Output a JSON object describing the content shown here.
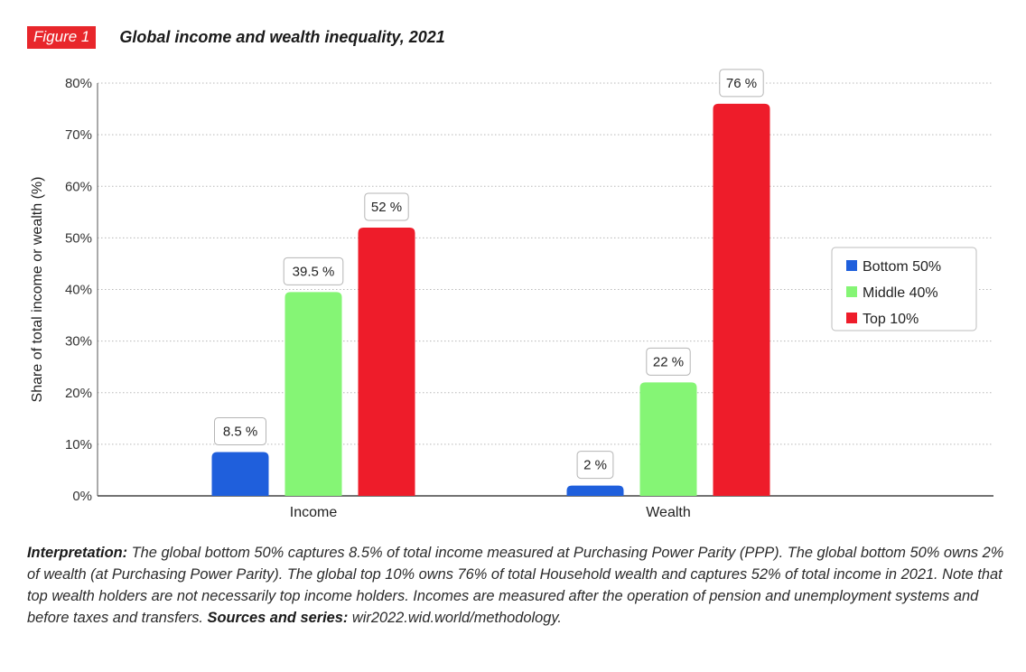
{
  "header": {
    "badge": "Figure 1",
    "title": "Global income and wealth inequality, 2021"
  },
  "chart_data": {
    "type": "bar",
    "title": "Global income and wealth inequality, 2021",
    "xlabel": "",
    "ylabel": "Share of total income or wealth (%)",
    "categories": [
      "Income",
      "Wealth"
    ],
    "yticks": [
      "0%",
      "10%",
      "20%",
      "30%",
      "40%",
      "50%",
      "60%",
      "70%",
      "80%"
    ],
    "ylim": [
      0,
      80
    ],
    "grid": true,
    "legend_position": "right",
    "series": [
      {
        "name": "Bottom 50%",
        "color": "#1f5fdc",
        "values": [
          8.5,
          2
        ],
        "labels": [
          "8.5 %",
          "2 %"
        ]
      },
      {
        "name": "Middle 40%",
        "color": "#85f575",
        "values": [
          39.5,
          22
        ],
        "labels": [
          "39.5 %",
          "22 %"
        ]
      },
      {
        "name": "Top 10%",
        "color": "#ee1c2a",
        "values": [
          52,
          76
        ],
        "labels": [
          "52 %",
          "76 %"
        ]
      }
    ]
  },
  "note": {
    "lead": "Interpretation:",
    "body": " The global bottom 50% captures 8.5% of total income measured at Purchasing Power Parity (PPP). The global bottom 50% owns 2% of wealth (at Purchasing Power Parity). The global top 10% owns 76% of total Household wealth and captures 52% of total income in 2021. Note that top wealth holders are not necessarily top income holders. Incomes are measured after the operation of pension and unemployment systems and before taxes and transfers.",
    "sources_lead": "Sources and series:",
    "sources": " wir2022.wid.world/methodology."
  }
}
